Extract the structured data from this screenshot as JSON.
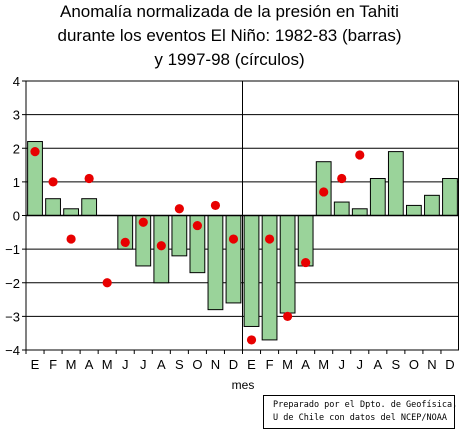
{
  "chart_data": {
    "type": "bar",
    "title_lines": [
      "Anomalía normalizada de la presión en Tahiti",
      "durante los eventos El Niño: 1982-83 (barras)",
      "y 1997-98 (círculos)"
    ],
    "xlabel": "mes",
    "ylabel": "",
    "ylim": [
      -4,
      4
    ],
    "yticks": [
      "4",
      "3",
      "2",
      "1",
      "0",
      "−1",
      "−2",
      "−3",
      "−4"
    ],
    "categories": [
      "E",
      "F",
      "M",
      "A",
      "M",
      "J",
      "J",
      "A",
      "S",
      "O",
      "N",
      "D",
      "E",
      "F",
      "M",
      "A",
      "M",
      "J",
      "J",
      "A",
      "S",
      "O",
      "N",
      "D"
    ],
    "grid": true,
    "series": [
      {
        "name": "1982-83",
        "kind": "bar",
        "color": "#9ad39a",
        "values": [
          2.2,
          0.5,
          0.2,
          0.5,
          0.0,
          -1.0,
          -1.5,
          -2.0,
          -1.2,
          -1.7,
          -2.8,
          -2.6,
          -3.3,
          -3.7,
          -2.9,
          -1.5,
          1.6,
          0.4,
          0.2,
          1.1,
          1.9,
          0.3,
          0.6,
          1.1
        ]
      },
      {
        "name": "1997-98",
        "kind": "scatter",
        "color": "#e80000",
        "values": [
          1.9,
          1.0,
          -0.7,
          1.1,
          -2.0,
          -0.8,
          -0.2,
          -0.9,
          0.2,
          -0.3,
          0.3,
          -0.7,
          -3.7,
          -0.7,
          -3.0,
          -1.4,
          0.7,
          1.1,
          1.8
        ]
      }
    ]
  },
  "credit": {
    "line1": "Preparado por el Dpto. de Geofísica,",
    "line2": "U de Chile con datos del NCEP/NOAA"
  }
}
